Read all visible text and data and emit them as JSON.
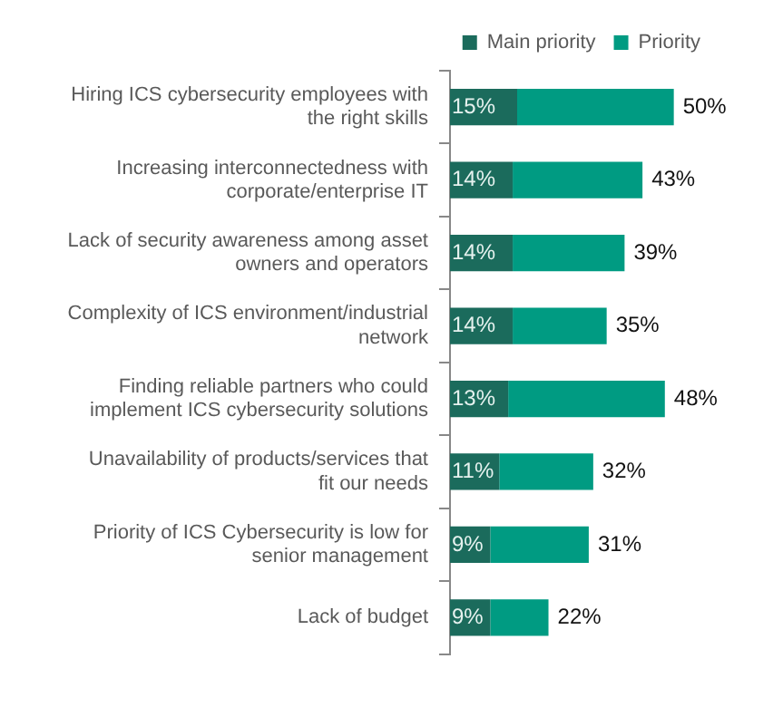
{
  "chart_data": {
    "type": "bar",
    "orientation": "horizontal",
    "stacked": true,
    "legend": "top right",
    "categories": [
      "Hiring ICS cybersecurity employees with the right skills",
      "Increasing interconnectedness with corporate/enterprise IT",
      "Lack of security awareness among asset owners and operators",
      "Complexity of ICS environment/industrial network",
      "Finding reliable partners who could implement ICS cybersecurity solutions",
      "Unavailability of products/services that fit our needs",
      "Priority of ICS Cybersecurity is low for senior management",
      "Lack of budget"
    ],
    "series": [
      {
        "name": "Main priority",
        "color": "#1b6b5c",
        "values": [
          15,
          14,
          14,
          14,
          13,
          11,
          9,
          9
        ],
        "value_labels": [
          "15%",
          "14%",
          "14%",
          "14%",
          "13%",
          "11%",
          "9%",
          "9%"
        ]
      },
      {
        "name": "Priority",
        "color": "#009b82",
        "values": [
          35,
          29,
          25,
          21,
          35,
          21,
          22,
          13
        ]
      }
    ],
    "totals": [
      "50%",
      "43%",
      "39%",
      "35%",
      "48%",
      "32%",
      "31%",
      "22%"
    ]
  }
}
